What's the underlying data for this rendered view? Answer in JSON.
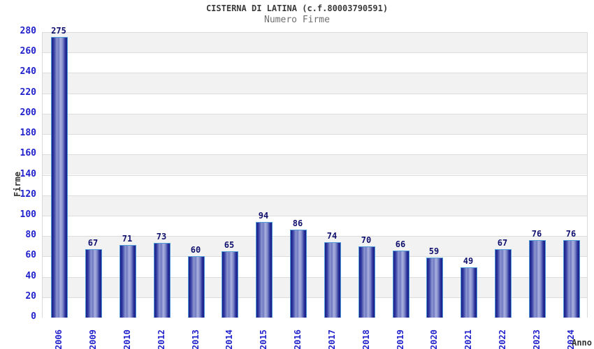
{
  "chart_data": {
    "type": "bar",
    "title": "CISTERNA DI LATINA (c.f.80003790591)",
    "subtitle": "Numero Firme",
    "xlabel": "Anno",
    "ylabel": "Firme",
    "categories": [
      "2006",
      "2009",
      "2010",
      "2012",
      "2013",
      "2014",
      "2015",
      "2016",
      "2017",
      "2018",
      "2019",
      "2020",
      "2021",
      "2022",
      "2023",
      "2024"
    ],
    "values": [
      275,
      67,
      71,
      73,
      60,
      65,
      94,
      86,
      74,
      70,
      66,
      59,
      49,
      67,
      76,
      76
    ],
    "ylim": [
      0,
      280
    ],
    "ytick_step": 20,
    "grid": true,
    "legend_position": "none",
    "plot_bands_alternating": true,
    "colors": {
      "bar_dark": "#181e86",
      "bar_mid": "#343da4",
      "bar_light": "#9099d1",
      "bar_highlight": "#aab1de",
      "bar_border": "#4f9bd8",
      "tick_text": "#2222cc",
      "value_label_text": "#10106e",
      "band_gray": "#f2f2f2",
      "gridline": "#dcdcdc",
      "title_text": "#3a3a3a",
      "subtitle_text": "#6e6e6e",
      "axis_name_text": "#333333",
      "background": "#ffffff"
    }
  }
}
